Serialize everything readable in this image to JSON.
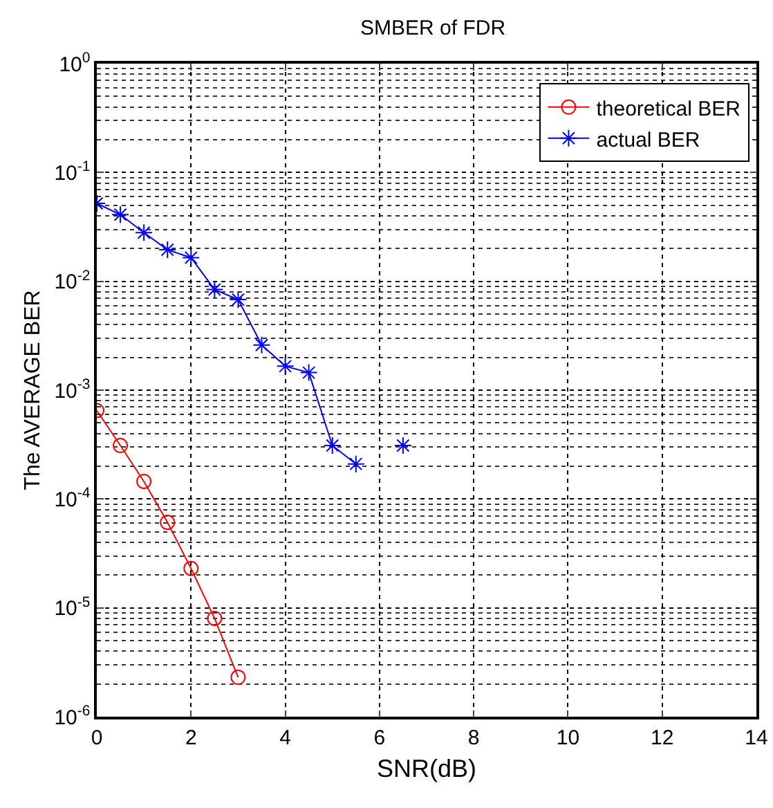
{
  "chart_data": {
    "type": "line",
    "title": "SMBER of FDR",
    "xlabel": "SNR(dB)",
    "ylabel": "The AVERAGE BER",
    "x": [
      0,
      0.5,
      1,
      1.5,
      2,
      2.5,
      3,
      3.5,
      4,
      4.5,
      5,
      5.5,
      6,
      6.5
    ],
    "series": [
      {
        "name": "theoretical BER",
        "color": "#ff0000",
        "marker": "circle",
        "values": [
          0.00065,
          0.00031,
          0.000145,
          6.1e-05,
          2.3e-05,
          8e-06,
          2.3e-06,
          null,
          null,
          null,
          null,
          null,
          null,
          null
        ]
      },
      {
        "name": "actual BER",
        "color": "#0000ff",
        "marker": "cross",
        "values": [
          0.052,
          0.041,
          0.028,
          0.0195,
          0.0165,
          0.0084,
          0.0068,
          0.0026,
          0.00166,
          0.00145,
          0.00031,
          0.00021,
          null,
          0.00031
        ]
      }
    ],
    "log": true,
    "xlim": [
      0,
      14
    ],
    "xticks": [
      0,
      2,
      4,
      6,
      8,
      10,
      12,
      14
    ],
    "ylim": [
      1e-06,
      1
    ],
    "yticks": [
      {
        "value": 1e-06,
        "label": "10$^{-6}$"
      },
      {
        "value": 1e-05,
        "label": "10$^{-5}$"
      },
      {
        "value": 0.0001,
        "label": "10$^{-4}$"
      },
      {
        "value": 0.001,
        "label": "10$^{-3}$"
      },
      {
        "value": 0.01,
        "label": "10$^{-2}$"
      },
      {
        "value": 0.1,
        "label": "10$^{-1}$"
      },
      {
        "value": 1,
        "label": "10$^{0}$"
      }
    ],
    "grid": true,
    "legend": "top right",
    "line_style": "solid"
  }
}
